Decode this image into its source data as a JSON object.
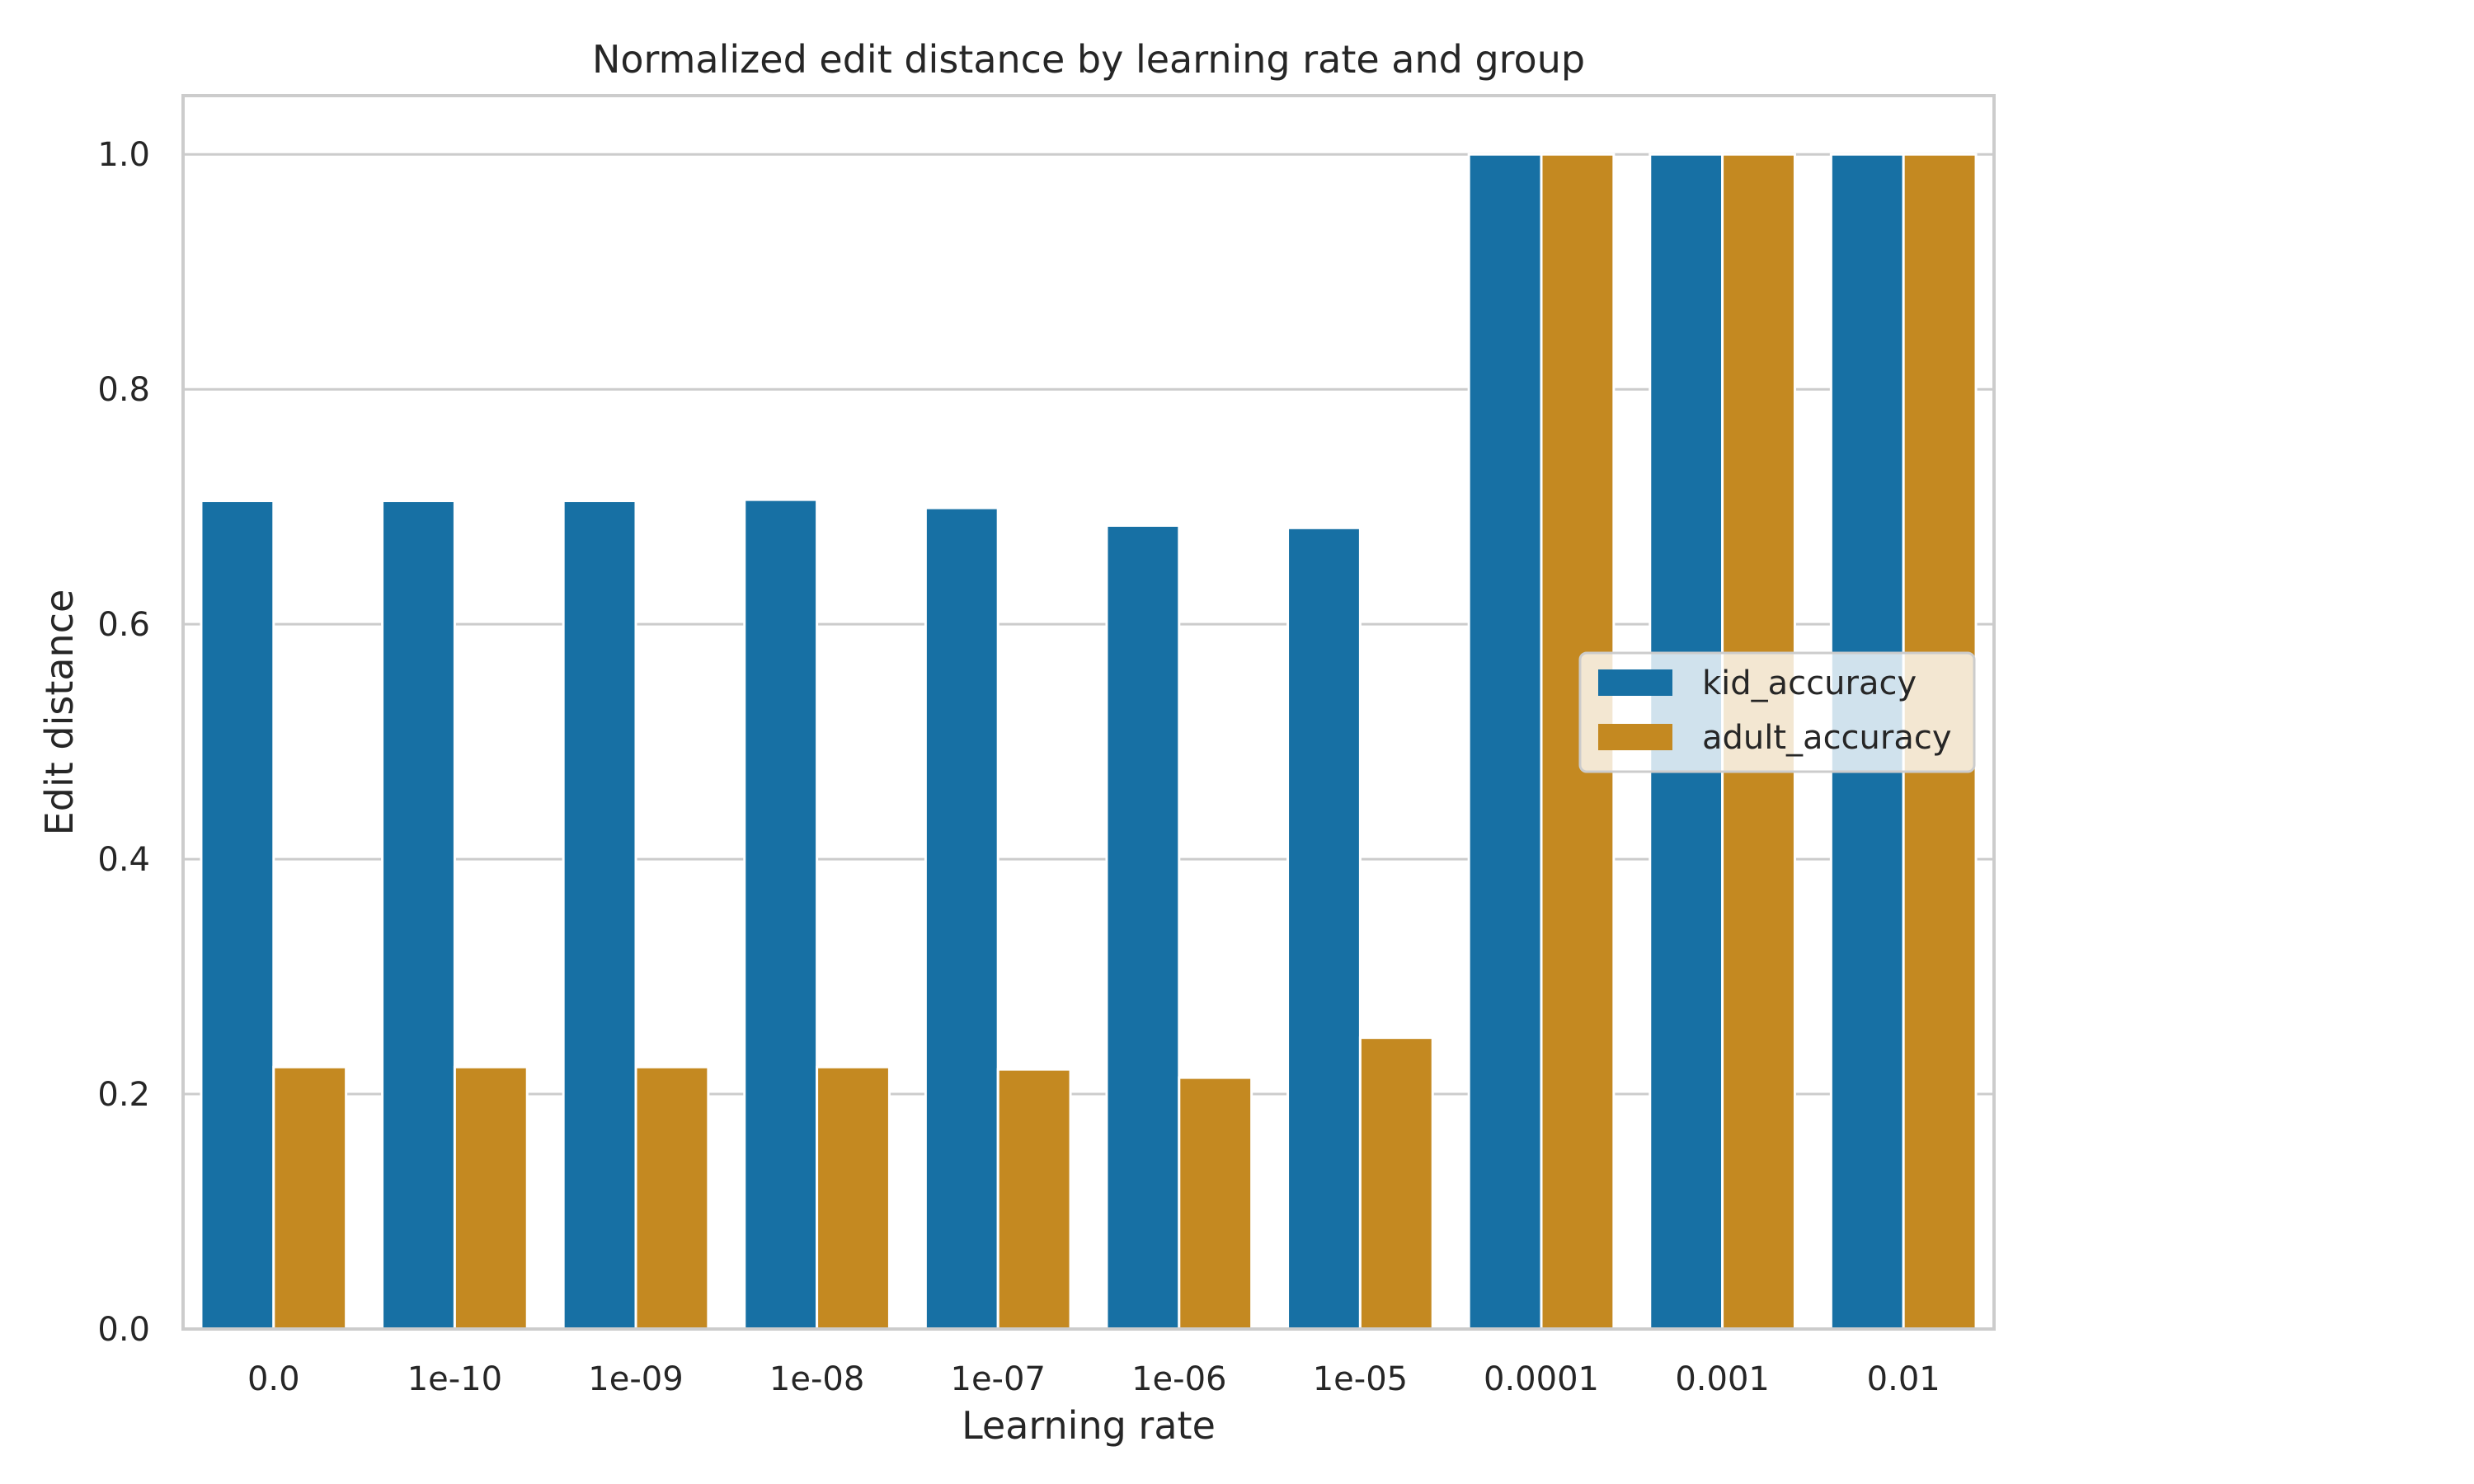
{
  "chart_data": {
    "type": "bar",
    "title": "Normalized edit distance by learning rate and group",
    "xlabel": "Learning rate",
    "ylabel": "Edit distance",
    "categories": [
      "0.0",
      "1e-10",
      "1e-09",
      "1e-08",
      "1e-07",
      "1e-06",
      "1e-05",
      "0.0001",
      "0.001",
      "0.01"
    ],
    "series": [
      {
        "name": "kid_accuracy",
        "color": "#1770a4",
        "values": [
          0.705,
          0.705,
          0.705,
          0.706,
          0.699,
          0.684,
          0.682,
          1.0,
          1.0,
          1.0
        ]
      },
      {
        "name": "adult_accuracy",
        "color": "#c48921",
        "values": [
          0.223,
          0.223,
          0.223,
          0.223,
          0.221,
          0.214,
          0.248,
          1.0,
          1.0,
          1.0
        ]
      }
    ],
    "ylim": [
      0,
      1.05
    ],
    "yticks": [
      0.0,
      0.2,
      0.4,
      0.6,
      0.8,
      1.0
    ],
    "ytick_labels": [
      "0.0",
      "0.2",
      "0.4",
      "0.6",
      "0.8",
      "1.0"
    ],
    "grid": true,
    "legend_position": "center-right"
  }
}
